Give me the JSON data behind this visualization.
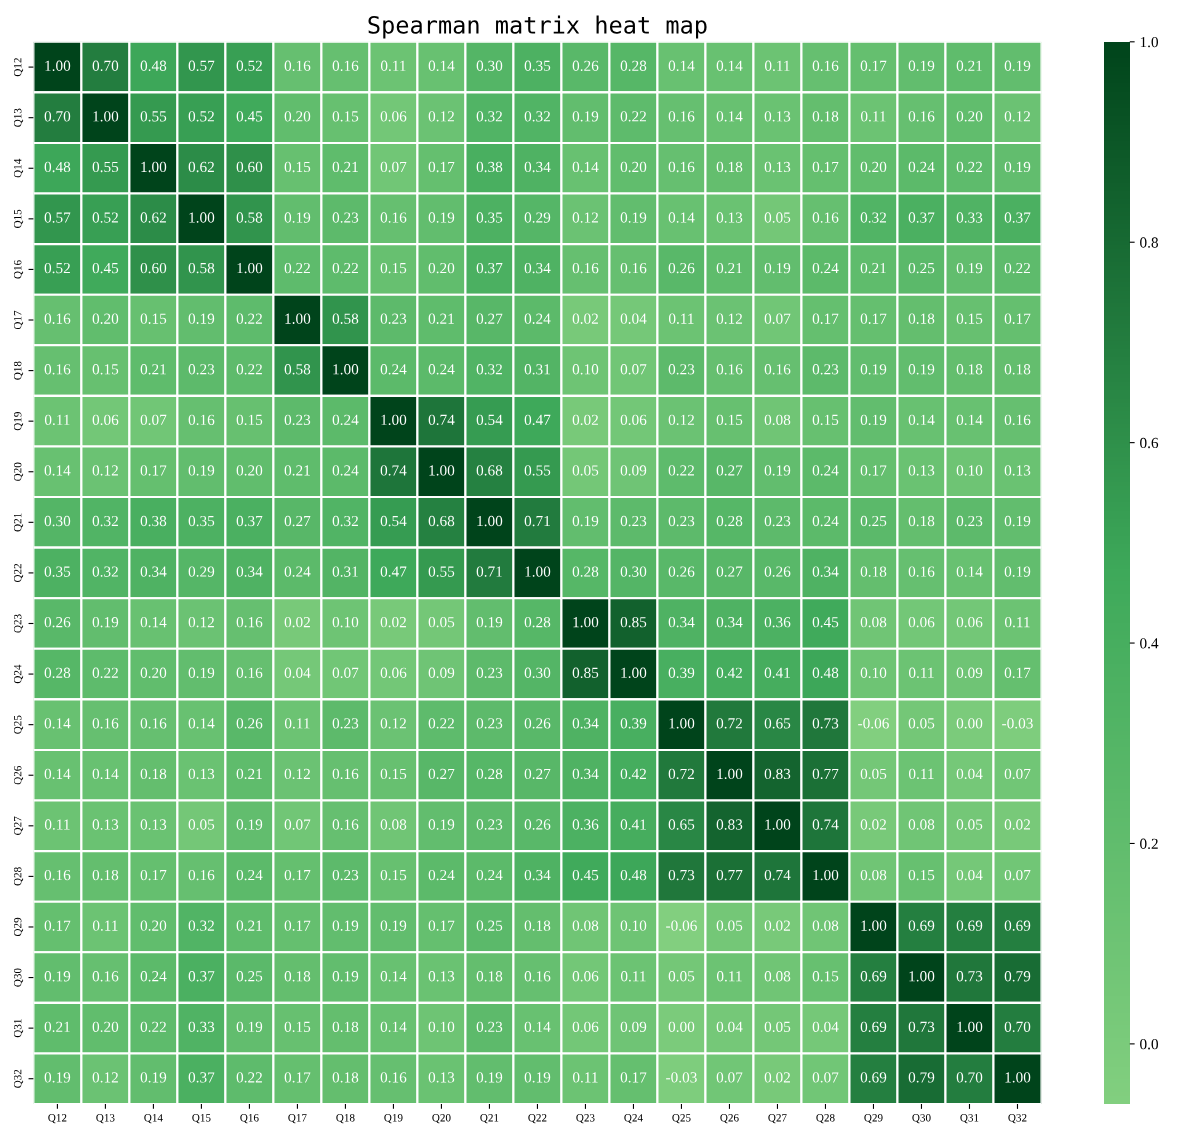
{
  "chart_data": {
    "type": "heatmap",
    "title": "Spearman matrix heat map",
    "categories": [
      "Q12",
      "Q13",
      "Q14",
      "Q15",
      "Q16",
      "Q17",
      "Q18",
      "Q19",
      "Q20",
      "Q21",
      "Q22",
      "Q23",
      "Q24",
      "Q25",
      "Q26",
      "Q27",
      "Q28",
      "Q29",
      "Q30",
      "Q31",
      "Q32"
    ],
    "y_categories": [
      "Q12",
      "Q13",
      "Q14",
      "Q15",
      "Q16",
      "Q17",
      "Q18",
      "Q19",
      "Q20",
      "Q21",
      "Q22",
      "Q23",
      "Q24",
      "Q25",
      "Q26",
      "Q27",
      "Q28",
      "Q29",
      "Q30",
      "Q31",
      "Q32"
    ],
    "cells": [
      [
        1.0,
        0.7,
        0.48,
        0.57,
        0.52,
        0.16,
        0.16,
        0.11,
        0.14,
        0.3,
        0.35,
        0.26,
        0.28,
        0.14,
        0.14,
        0.11,
        0.16,
        0.17,
        0.19,
        0.21,
        0.19
      ],
      [
        0.7,
        1.0,
        0.55,
        0.52,
        0.45,
        0.2,
        0.15,
        0.06,
        0.12,
        0.32,
        0.32,
        0.19,
        0.22,
        0.16,
        0.14,
        0.13,
        0.18,
        0.11,
        0.16,
        0.2,
        0.12
      ],
      [
        0.48,
        0.55,
        1.0,
        0.62,
        0.6,
        0.15,
        0.21,
        0.07,
        0.17,
        0.38,
        0.34,
        0.14,
        0.2,
        0.16,
        0.18,
        0.13,
        0.17,
        0.2,
        0.24,
        0.22,
        0.19
      ],
      [
        0.57,
        0.52,
        0.62,
        1.0,
        0.58,
        0.19,
        0.23,
        0.16,
        0.19,
        0.35,
        0.29,
        0.12,
        0.19,
        0.14,
        0.13,
        0.05,
        0.16,
        0.32,
        0.37,
        0.33,
        0.37
      ],
      [
        0.52,
        0.45,
        0.6,
        0.58,
        1.0,
        0.22,
        0.22,
        0.15,
        0.2,
        0.37,
        0.34,
        0.16,
        0.16,
        0.26,
        0.21,
        0.19,
        0.24,
        0.21,
        0.25,
        0.19,
        0.22
      ],
      [
        0.16,
        0.2,
        0.15,
        0.19,
        0.22,
        1.0,
        0.58,
        0.23,
        0.21,
        0.27,
        0.24,
        0.02,
        0.04,
        0.11,
        0.12,
        0.07,
        0.17,
        0.17,
        0.18,
        0.15,
        0.17
      ],
      [
        0.16,
        0.15,
        0.21,
        0.23,
        0.22,
        0.58,
        1.0,
        0.24,
        0.24,
        0.32,
        0.31,
        0.1,
        0.07,
        0.23,
        0.16,
        0.16,
        0.23,
        0.19,
        0.19,
        0.18,
        0.18
      ],
      [
        0.11,
        0.06,
        0.07,
        0.16,
        0.15,
        0.23,
        0.24,
        1.0,
        0.74,
        0.54,
        0.47,
        0.02,
        0.06,
        0.12,
        0.15,
        0.08,
        0.15,
        0.19,
        0.14,
        0.14,
        0.16
      ],
      [
        0.14,
        0.12,
        0.17,
        0.19,
        0.2,
        0.21,
        0.24,
        0.74,
        1.0,
        0.68,
        0.55,
        0.05,
        0.09,
        0.22,
        0.27,
        0.19,
        0.24,
        0.17,
        0.13,
        0.1,
        0.13
      ],
      [
        0.3,
        0.32,
        0.38,
        0.35,
        0.37,
        0.27,
        0.32,
        0.54,
        0.68,
        1.0,
        0.71,
        0.19,
        0.23,
        0.23,
        0.28,
        0.23,
        0.24,
        0.25,
        0.18,
        0.23,
        0.19
      ],
      [
        0.35,
        0.32,
        0.34,
        0.29,
        0.34,
        0.24,
        0.31,
        0.47,
        0.55,
        0.71,
        1.0,
        0.28,
        0.3,
        0.26,
        0.27,
        0.26,
        0.34,
        0.18,
        0.16,
        0.14,
        0.19
      ],
      [
        0.26,
        0.19,
        0.14,
        0.12,
        0.16,
        0.02,
        0.1,
        0.02,
        0.05,
        0.19,
        0.28,
        1.0,
        0.85,
        0.34,
        0.34,
        0.36,
        0.45,
        0.08,
        0.06,
        0.06,
        0.11
      ],
      [
        0.28,
        0.22,
        0.2,
        0.19,
        0.16,
        0.04,
        0.07,
        0.06,
        0.09,
        0.23,
        0.3,
        0.85,
        1.0,
        0.39,
        0.42,
        0.41,
        0.48,
        0.1,
        0.11,
        0.09,
        0.17
      ],
      [
        0.14,
        0.16,
        0.16,
        0.14,
        0.26,
        0.11,
        0.23,
        0.12,
        0.22,
        0.23,
        0.26,
        0.34,
        0.39,
        1.0,
        0.72,
        0.65,
        0.73,
        -0.06,
        0.05,
        0.0,
        -0.03
      ],
      [
        0.14,
        0.14,
        0.18,
        0.13,
        0.21,
        0.12,
        0.16,
        0.15,
        0.27,
        0.28,
        0.27,
        0.34,
        0.42,
        0.72,
        1.0,
        0.83,
        0.77,
        0.05,
        0.11,
        0.04,
        0.07
      ],
      [
        0.11,
        0.13,
        0.13,
        0.05,
        0.19,
        0.07,
        0.16,
        0.08,
        0.19,
        0.23,
        0.26,
        0.36,
        0.41,
        0.65,
        0.83,
        1.0,
        0.74,
        0.02,
        0.08,
        0.05,
        0.02
      ],
      [
        0.16,
        0.18,
        0.17,
        0.16,
        0.24,
        0.17,
        0.23,
        0.15,
        0.24,
        0.24,
        0.34,
        0.45,
        0.48,
        0.73,
        0.77,
        0.74,
        1.0,
        0.08,
        0.15,
        0.04,
        0.07
      ],
      [
        0.17,
        0.11,
        0.2,
        0.32,
        0.21,
        0.17,
        0.19,
        0.19,
        0.17,
        0.25,
        0.18,
        0.08,
        0.1,
        -0.06,
        0.05,
        0.02,
        0.08,
        1.0,
        0.69,
        0.69,
        0.69
      ],
      [
        0.19,
        0.16,
        0.24,
        0.37,
        0.25,
        0.18,
        0.19,
        0.14,
        0.13,
        0.18,
        0.16,
        0.06,
        0.11,
        0.05,
        0.11,
        0.08,
        0.15,
        0.69,
        1.0,
        0.73,
        0.79
      ],
      [
        0.21,
        0.2,
        0.22,
        0.33,
        0.19,
        0.15,
        0.18,
        0.14,
        0.1,
        0.23,
        0.14,
        0.06,
        0.09,
        0.0,
        0.04,
        0.05,
        0.04,
        0.69,
        0.73,
        1.0,
        0.7
      ],
      [
        0.19,
        0.12,
        0.19,
        0.37,
        0.22,
        0.17,
        0.18,
        0.16,
        0.13,
        0.19,
        0.19,
        0.11,
        0.17,
        -0.03,
        0.07,
        0.02,
        0.07,
        0.69,
        0.79,
        0.7,
        1.0
      ]
    ],
    "cell_labels": [
      [
        "1.00",
        "0.70",
        "0.48",
        "0.57",
        "0.52",
        "0.16",
        "0.16",
        "0.11",
        "0.14",
        "0.30",
        "0.35",
        "0.26",
        "0.28",
        "0.14",
        "0.14",
        "0.11",
        "0.16",
        "0.17",
        "0.19",
        "0.21",
        "0.19"
      ],
      [
        "0.70",
        "1.00",
        "0.55",
        "0.52",
        "0.45",
        "0.20",
        "0.15",
        "0.06",
        "0.12",
        "0.32",
        "0.32",
        "0.19",
        "0.22",
        "0.16",
        "0.14",
        "0.13",
        "0.18",
        "0.11",
        "0.16",
        "0.20",
        "0.12"
      ],
      [
        "0.48",
        "0.55",
        "1.00",
        "0.62",
        "0.60",
        "0.15",
        "0.21",
        "0.07",
        "0.17",
        "0.38",
        "0.34",
        "0.14",
        "0.20",
        "0.16",
        "0.18",
        "0.13",
        "0.17",
        "0.20",
        "0.24",
        "0.22",
        "0.19"
      ],
      [
        "0.57",
        "0.52",
        "0.62",
        "1.00",
        "0.58",
        "0.19",
        "0.23",
        "0.16",
        "0.19",
        "0.35",
        "0.29",
        "0.12",
        "0.19",
        "0.14",
        "0.13",
        "0.05",
        "0.16",
        "0.32",
        "0.37",
        "0.33",
        "0.37"
      ],
      [
        "0.52",
        "0.45",
        "0.60",
        "0.58",
        "1.00",
        "0.22",
        "0.22",
        "0.15",
        "0.20",
        "0.37",
        "0.34",
        "0.16",
        "0.16",
        "0.26",
        "0.21",
        "0.19",
        "0.24",
        "0.21",
        "0.25",
        "0.19",
        "0.22"
      ],
      [
        "0.16",
        "0.20",
        "0.15",
        "0.19",
        "0.22",
        "1.00",
        "0.58",
        "0.23",
        "0.21",
        "0.27",
        "0.24",
        "0.02",
        "0.04",
        "0.11",
        "0.12",
        "0.07",
        "0.17",
        "0.17",
        "0.18",
        "0.15",
        "0.17"
      ],
      [
        "0.16",
        "0.15",
        "0.21",
        "0.23",
        "0.22",
        "0.58",
        "1.00",
        "0.24",
        "0.24",
        "0.32",
        "0.31",
        "0.10",
        "0.07",
        "0.23",
        "0.16",
        "0.16",
        "0.23",
        "0.19",
        "0.19",
        "0.18",
        "0.18"
      ],
      [
        "0.11",
        "0.06",
        "0.07",
        "0.16",
        "0.15",
        "0.23",
        "0.24",
        "1.00",
        "0.74",
        "0.54",
        "0.47",
        "0.02",
        "0.06",
        "0.12",
        "0.15",
        "0.08",
        "0.15",
        "0.19",
        "0.14",
        "0.14",
        "0.16"
      ],
      [
        "0.14",
        "0.12",
        "0.17",
        "0.19",
        "0.20",
        "0.21",
        "0.24",
        "0.74",
        "1.00",
        "0.68",
        "0.55",
        "0.05",
        "0.09",
        "0.22",
        "0.27",
        "0.19",
        "0.24",
        "0.17",
        "0.13",
        "0.10",
        "0.13"
      ],
      [
        "0.30",
        "0.32",
        "0.38",
        "0.35",
        "0.37",
        "0.27",
        "0.32",
        "0.54",
        "0.68",
        "1.00",
        "0.71",
        "0.19",
        "0.23",
        "0.23",
        "0.28",
        "0.23",
        "0.24",
        "0.25",
        "0.18",
        "0.23",
        "0.19"
      ],
      [
        "0.35",
        "0.32",
        "0.34",
        "0.29",
        "0.34",
        "0.24",
        "0.31",
        "0.47",
        "0.55",
        "0.71",
        "1.00",
        "0.28",
        "0.30",
        "0.26",
        "0.27",
        "0.26",
        "0.34",
        "0.18",
        "0.16",
        "0.14",
        "0.19"
      ],
      [
        "0.26",
        "0.19",
        "0.14",
        "0.12",
        "0.16",
        "0.02",
        "0.10",
        "0.02",
        "0.05",
        "0.19",
        "0.28",
        "1.00",
        "0.85",
        "0.34",
        "0.34",
        "0.36",
        "0.45",
        "0.08",
        "0.06",
        "0.06",
        "0.11"
      ],
      [
        "0.28",
        "0.22",
        "0.20",
        "0.19",
        "0.16",
        "0.04",
        "0.07",
        "0.06",
        "0.09",
        "0.23",
        "0.30",
        "0.85",
        "1.00",
        "0.39",
        "0.42",
        "0.41",
        "0.48",
        "0.10",
        "0.11",
        "0.09",
        "0.17"
      ],
      [
        "0.14",
        "0.16",
        "0.16",
        "0.14",
        "0.26",
        "0.11",
        "0.23",
        "0.12",
        "0.22",
        "0.23",
        "0.26",
        "0.34",
        "0.39",
        "1.00",
        "0.72",
        "0.65",
        "0.73",
        "-0.06",
        "0.05",
        "0.00",
        "-0.03"
      ],
      [
        "0.14",
        "0.14",
        "0.18",
        "0.13",
        "0.21",
        "0.12",
        "0.16",
        "0.15",
        "0.27",
        "0.28",
        "0.27",
        "0.34",
        "0.42",
        "0.72",
        "1.00",
        "0.83",
        "0.77",
        "0.05",
        "0.11",
        "0.04",
        "0.07"
      ],
      [
        "0.11",
        "0.13",
        "0.13",
        "0.05",
        "0.19",
        "0.07",
        "0.16",
        "0.08",
        "0.19",
        "0.23",
        "0.26",
        "0.36",
        "0.41",
        "0.65",
        "0.83",
        "1.00",
        "0.74",
        "0.02",
        "0.08",
        "0.05",
        "0.02"
      ],
      [
        "0.16",
        "0.18",
        "0.17",
        "0.16",
        "0.24",
        "0.17",
        "0.23",
        "0.15",
        "0.24",
        "0.24",
        "0.34",
        "0.45",
        "0.48",
        "0.73",
        "0.77",
        "0.74",
        "1.00",
        "0.08",
        "0.15",
        "0.04",
        "0.07"
      ],
      [
        "0.17",
        "0.11",
        "0.20",
        "0.32",
        "0.21",
        "0.17",
        "0.19",
        "0.19",
        "0.17",
        "0.25",
        "0.18",
        "0.08",
        "0.10",
        "-0.06",
        "0.05",
        "0.02",
        "0.08",
        "1.00",
        "0.69",
        "0.69",
        "0.69"
      ],
      [
        "0.19",
        "0.16",
        "0.24",
        "0.37",
        "0.25",
        "0.18",
        "0.19",
        "0.14",
        "0.13",
        "0.18",
        "0.16",
        "0.06",
        "0.11",
        "0.05",
        "0.11",
        "0.08",
        "0.15",
        "0.69",
        "1.00",
        "0.73",
        "0.79"
      ],
      [
        "0.21",
        "0.20",
        "0.22",
        "0.33",
        "0.19",
        "0.15",
        "0.18",
        "0.14",
        "0.10",
        "0.23",
        "0.14",
        "0.06",
        "0.09",
        "0.00",
        "0.04",
        "0.05",
        "0.04",
        "0.69",
        "0.73",
        "1.00",
        "0.70"
      ],
      [
        "0.19",
        "0.12",
        "0.19",
        "0.37",
        "0.22",
        "0.17",
        "0.18",
        "0.16",
        "0.13",
        "0.19",
        "0.19",
        "0.11",
        "0.17",
        "-0.03",
        "0.07",
        "0.02",
        "0.07",
        "0.69",
        "0.79",
        "0.70",
        "1.00"
      ]
    ],
    "clim": [
      -0.06,
      1.0
    ],
    "cticks": [
      {
        "value": 0,
        "label": "0.0"
      },
      {
        "value": 0.2,
        "label": "0.2"
      },
      {
        "value": 0.4,
        "label": "0.4"
      },
      {
        "value": 0.6,
        "label": "0.6"
      },
      {
        "value": 0.8,
        "label": "0.8"
      },
      {
        "value": 1,
        "label": "1.0"
      }
    ],
    "colors": [
      "#82cf7f",
      "#3ea95a",
      "#00441b"
    ]
  }
}
